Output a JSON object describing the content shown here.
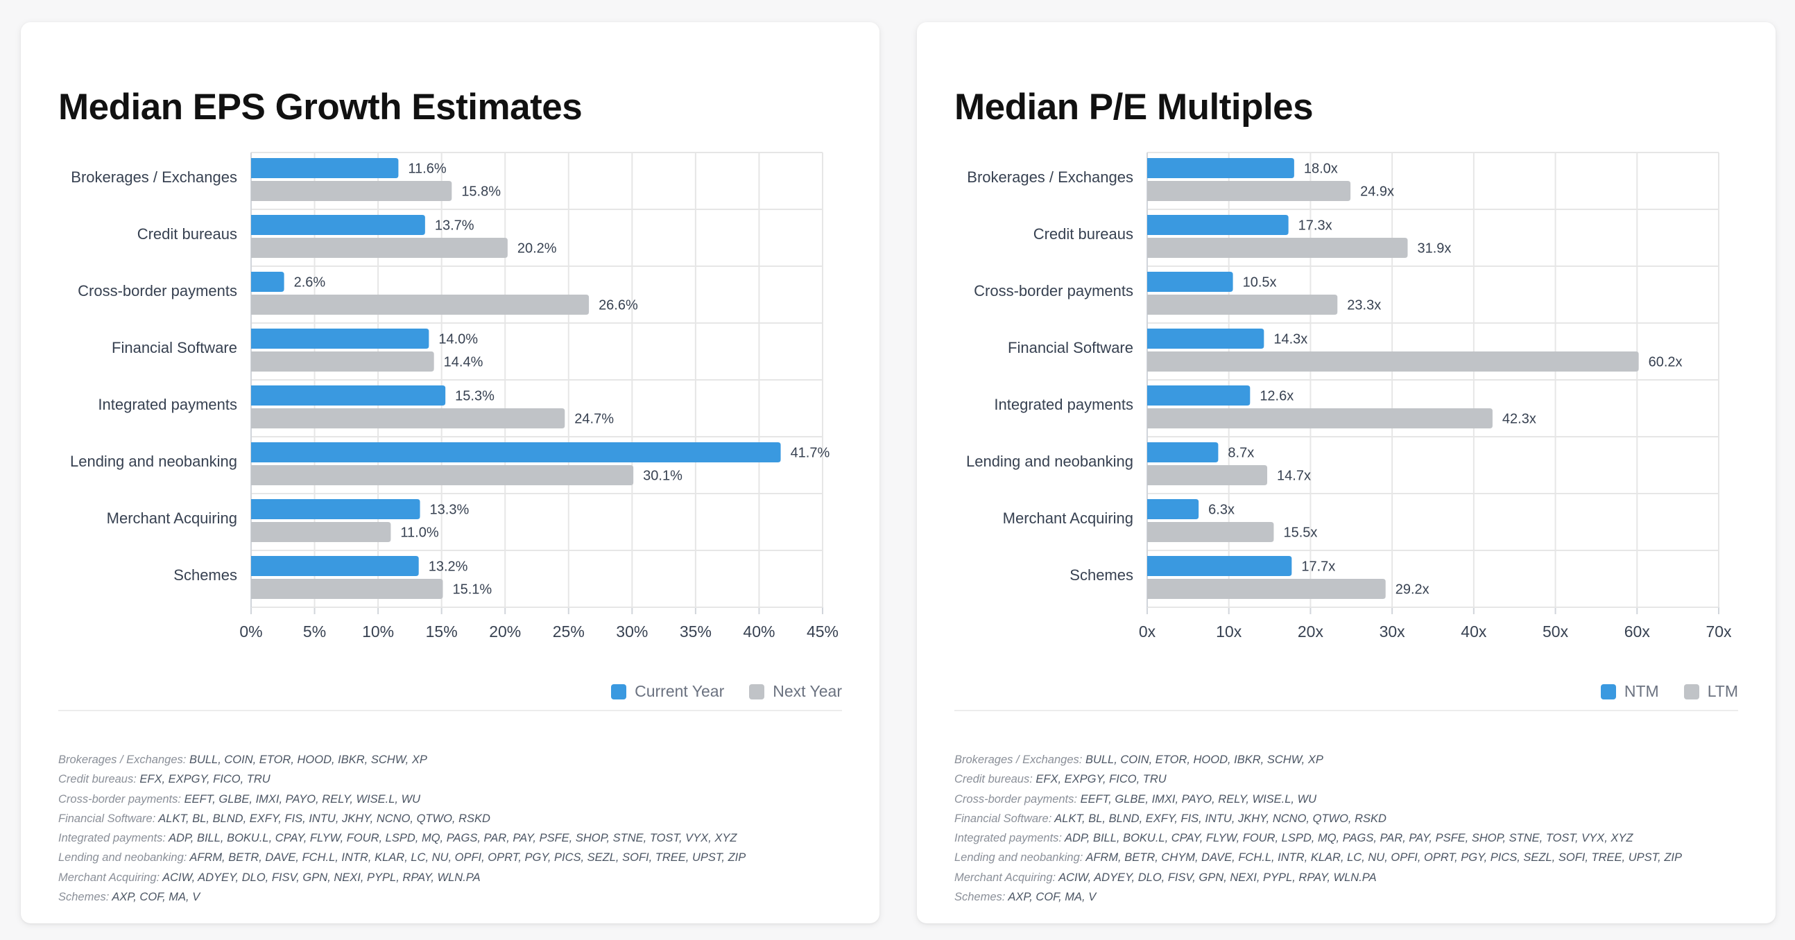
{
  "colors": {
    "primary": "#3a99e0",
    "secondary": "#c0c3c7",
    "grid": "#e6e6e6",
    "text": "#374151"
  },
  "chart_data": [
    {
      "type": "bar",
      "orientation": "horizontal",
      "title": "Median EPS Growth Estimates",
      "categories": [
        "Brokerages / Exchanges",
        "Credit bureaus",
        "Cross-border payments",
        "Financial Software",
        "Integrated payments",
        "Lending and neobanking",
        "Merchant Acquiring",
        "Schemes"
      ],
      "series": [
        {
          "name": "Current Year",
          "color": "#3a99e0",
          "values": [
            11.6,
            13.7,
            2.6,
            14.0,
            15.3,
            41.7,
            13.3,
            13.2
          ],
          "labels": [
            "11.6%",
            "13.7%",
            "2.6%",
            "14.0%",
            "15.3%",
            "41.7%",
            "13.3%",
            "13.2%"
          ]
        },
        {
          "name": "Next Year",
          "color": "#c0c3c7",
          "values": [
            15.8,
            20.2,
            26.6,
            14.4,
            24.7,
            30.1,
            11.0,
            15.1
          ],
          "labels": [
            "15.8%",
            "20.2%",
            "26.6%",
            "14.4%",
            "24.7%",
            "30.1%",
            "11.0%",
            "15.1%"
          ]
        }
      ],
      "xlim": [
        0,
        45
      ],
      "xticks": [
        0,
        5,
        10,
        15,
        20,
        25,
        30,
        35,
        40,
        45
      ],
      "xtick_labels": [
        "0%",
        "5%",
        "10%",
        "15%",
        "20%",
        "25%",
        "30%",
        "35%",
        "40%",
        "45%"
      ],
      "grid": true,
      "legend_position": "bottom-right",
      "footnotes": [
        {
          "label": "Brokerages / Exchanges:",
          "tickers": "BULL, COIN, ETOR, HOOD, IBKR, SCHW, XP"
        },
        {
          "label": "Credit bureaus:",
          "tickers": "EFX, EXPGY, FICO, TRU"
        },
        {
          "label": "Cross-border payments:",
          "tickers": "EEFT, GLBE, IMXI, PAYO, RELY, WISE.L, WU"
        },
        {
          "label": "Financial Software:",
          "tickers": "ALKT, BL, BLND, EXFY, FIS, INTU, JKHY, NCNO, QTWO, RSKD"
        },
        {
          "label": "Integrated payments:",
          "tickers": "ADP, BILL, BOKU.L, CPAY, FLYW, FOUR, LSPD, MQ, PAGS, PAR, PAY, PSFE, SHOP, STNE, TOST, VYX, XYZ"
        },
        {
          "label": "Lending and neobanking:",
          "tickers": "AFRM, BETR, DAVE, FCH.L, INTR, KLAR, LC, NU, OPFI, OPRT, PGY, PICS, SEZL, SOFI, TREE, UPST, ZIP"
        },
        {
          "label": "Merchant Acquiring:",
          "tickers": "ACIW, ADYEY, DLO, FISV, GPN, NEXI, PYPL, RPAY, WLN.PA"
        },
        {
          "label": "Schemes:",
          "tickers": "AXP, COF, MA, V"
        }
      ]
    },
    {
      "type": "bar",
      "orientation": "horizontal",
      "title": "Median P/E Multiples",
      "categories": [
        "Brokerages / Exchanges",
        "Credit bureaus",
        "Cross-border payments",
        "Financial Software",
        "Integrated payments",
        "Lending and neobanking",
        "Merchant Acquiring",
        "Schemes"
      ],
      "series": [
        {
          "name": "NTM",
          "color": "#3a99e0",
          "values": [
            18.0,
            17.3,
            10.5,
            14.3,
            12.6,
            8.7,
            6.3,
            17.7
          ],
          "labels": [
            "18.0x",
            "17.3x",
            "10.5x",
            "14.3x",
            "12.6x",
            "8.7x",
            "6.3x",
            "17.7x"
          ]
        },
        {
          "name": "LTM",
          "color": "#c0c3c7",
          "values": [
            24.9,
            31.9,
            23.3,
            60.2,
            42.3,
            14.7,
            15.5,
            29.2
          ],
          "labels": [
            "24.9x",
            "31.9x",
            "23.3x",
            "60.2x",
            "42.3x",
            "14.7x",
            "15.5x",
            "29.2x"
          ]
        }
      ],
      "xlim": [
        0,
        70
      ],
      "xticks": [
        0,
        10,
        20,
        30,
        40,
        50,
        60,
        70
      ],
      "xtick_labels": [
        "0x",
        "10x",
        "20x",
        "30x",
        "40x",
        "50x",
        "60x",
        "70x"
      ],
      "grid": true,
      "legend_position": "bottom-right",
      "footnotes": [
        {
          "label": "Brokerages / Exchanges:",
          "tickers": "BULL, COIN, ETOR, HOOD, IBKR, SCHW, XP"
        },
        {
          "label": "Credit bureaus:",
          "tickers": "EFX, EXPGY, FICO, TRU"
        },
        {
          "label": "Cross-border payments:",
          "tickers": "EEFT, GLBE, IMXI, PAYO, RELY, WISE.L, WU"
        },
        {
          "label": "Financial Software:",
          "tickers": "ALKT, BL, BLND, EXFY, FIS, INTU, JKHY, NCNO, QTWO, RSKD"
        },
        {
          "label": "Integrated payments:",
          "tickers": "ADP, BILL, BOKU.L, CPAY, FLYW, FOUR, LSPD, MQ, PAGS, PAR, PAY, PSFE, SHOP, STNE, TOST, VYX, XYZ"
        },
        {
          "label": "Lending and neobanking:",
          "tickers": "AFRM, BETR, CHYM, DAVE, FCH.L, INTR, KLAR, LC, NU, OPFI, OPRT, PGY, PICS, SEZL, SOFI, TREE, UPST, ZIP"
        },
        {
          "label": "Merchant Acquiring:",
          "tickers": "ACIW, ADYEY, DLO, FISV, GPN, NEXI, PYPL, RPAY, WLN.PA"
        },
        {
          "label": "Schemes:",
          "tickers": "AXP, COF, MA, V"
        }
      ]
    }
  ]
}
